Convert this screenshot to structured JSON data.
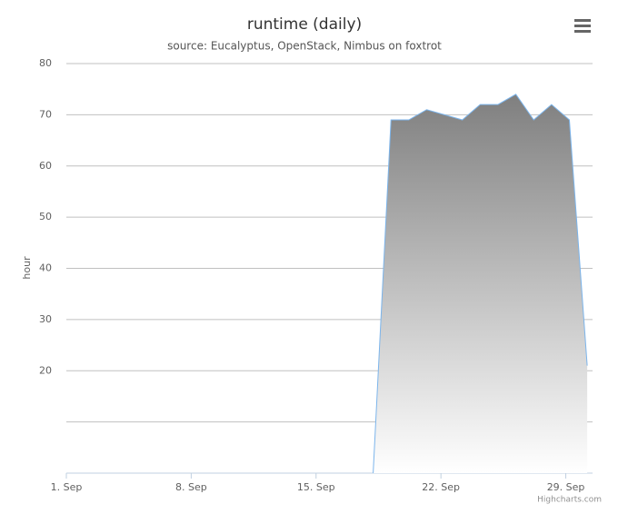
{
  "chart_data": {
    "type": "area",
    "title": "runtime (daily)",
    "subtitle": "source: Eucalyptus, OpenStack, Nimbus on foxtrot",
    "y_label": "hour",
    "credits": "Highcharts.com",
    "x": [
      18.2,
      19.2,
      20.2,
      21.2,
      22.2,
      23.2,
      24.2,
      25.2,
      26.2,
      27.2,
      28.2,
      29.2,
      30.2
    ],
    "series": [
      {
        "name": "runtime",
        "color": "#7cb5ec",
        "values": [
          0,
          69,
          69,
          71,
          70,
          69,
          72,
          72,
          74,
          69,
          72,
          69,
          21
        ]
      }
    ],
    "xlim": [
      1,
      30.5
    ],
    "xticks": [
      {
        "value": 1,
        "label": "1. Sep"
      },
      {
        "value": 8,
        "label": "8. Sep"
      },
      {
        "value": 15,
        "label": "15. Sep"
      },
      {
        "value": 22,
        "label": "22. Sep"
      },
      {
        "value": 29,
        "label": "29. Sep"
      }
    ],
    "ylim": [
      0,
      80
    ],
    "yticks": [
      {
        "value": 10,
        "label": null
      },
      20,
      30,
      40,
      50,
      60,
      70,
      80
    ],
    "grid": true
  }
}
